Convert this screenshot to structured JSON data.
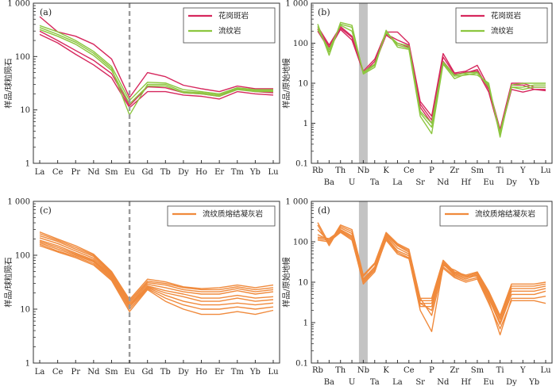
{
  "chart_data": [
    {
      "type": "line",
      "panel_label": "(a)",
      "ylabel": "样品/球粒陨石",
      "yscale": "log",
      "ylim": [
        1,
        1000
      ],
      "yticks": [
        "1",
        "10",
        "100",
        "1 000"
      ],
      "categories": [
        "La",
        "Ce",
        "Pr",
        "Nd",
        "Sm",
        "Eu",
        "Gd",
        "Tb",
        "Dy",
        "Ho",
        "Er",
        "Tm",
        "Yb",
        "Lu"
      ],
      "eu_marker": "Eu",
      "shade": null,
      "legend": {
        "position": "top-right",
        "entries": [
          {
            "label": "花岗斑岩",
            "color": "#d6275d"
          },
          {
            "label": "流纹岩",
            "color": "#8cc63f"
          }
        ]
      },
      "series": [
        {
          "group": "花岗斑岩",
          "color": "#d6275d",
          "values": [
            560,
            290,
            240,
            170,
            90,
            17,
            50,
            42,
            29,
            25,
            22,
            28,
            25,
            25
          ]
        },
        {
          "group": "花岗斑岩",
          "color": "#d6275d",
          "values": [
            300,
            200,
            130,
            85,
            48,
            12,
            27,
            26,
            21,
            20,
            18,
            25,
            22,
            21
          ]
        },
        {
          "group": "花岗斑岩",
          "color": "#d6275d",
          "values": [
            260,
            180,
            110,
            70,
            40,
            11,
            22,
            22,
            19,
            18,
            16,
            22,
            20,
            19
          ]
        },
        {
          "group": "流纹岩",
          "color": "#8cc63f",
          "values": [
            380,
            290,
            200,
            125,
            65,
            15,
            33,
            32,
            24,
            22,
            20,
            26,
            24,
            24
          ]
        },
        {
          "group": "流纹岩",
          "color": "#8cc63f",
          "values": [
            350,
            260,
            185,
            115,
            60,
            8,
            30,
            30,
            22,
            21,
            19,
            25,
            23,
            23
          ]
        },
        {
          "group": "流纹岩",
          "color": "#8cc63f",
          "values": [
            320,
            240,
            170,
            105,
            55,
            13,
            28,
            28,
            21,
            20,
            18,
            24,
            22,
            22
          ]
        }
      ]
    },
    {
      "type": "line",
      "panel_label": "(b)",
      "ylabel": "样品/原始地幔",
      "yscale": "log",
      "ylim": [
        0.1,
        1000
      ],
      "yticks": [
        "0.1",
        "1",
        "10",
        "100",
        "1 000"
      ],
      "categories": [
        "Rb",
        "Ba",
        "Th",
        "U",
        "Nb",
        "Ta",
        "K",
        "La",
        "Ce",
        "Sr",
        "P",
        "Nd",
        "Zr",
        "Hf",
        "Sm",
        "Eu",
        "Ti",
        "Dy",
        "Y",
        "Yb",
        "Lu"
      ],
      "eu_marker": null,
      "shade": "Nb",
      "legend": {
        "position": "top-right",
        "entries": [
          {
            "label": "花岗斑岩",
            "color": "#d6275d"
          },
          {
            "label": "流纹岩",
            "color": "#8cc63f"
          }
        ]
      },
      "series": [
        {
          "group": "花岗斑岩",
          "color": "#d6275d",
          "values": [
            260,
            90,
            260,
            150,
            20,
            40,
            190,
            190,
            100,
            3.5,
            1.5,
            55,
            18,
            20,
            28,
            8,
            0.7,
            10,
            10,
            8,
            8
          ]
        },
        {
          "group": "花岗斑岩",
          "color": "#d6275d",
          "values": [
            230,
            80,
            240,
            140,
            18,
            35,
            170,
            120,
            90,
            3.0,
            1.2,
            45,
            17,
            18,
            22,
            7,
            0.6,
            9,
            9,
            7,
            7
          ]
        },
        {
          "group": "花岗斑岩",
          "color": "#d6275d",
          "values": [
            200,
            70,
            220,
            120,
            19,
            30,
            160,
            100,
            80,
            2.5,
            1.0,
            35,
            16,
            19,
            20,
            6,
            0.55,
            7,
            6,
            7,
            6.5
          ]
        },
        {
          "group": "流纹岩",
          "color": "#8cc63f",
          "values": [
            300,
            50,
            330,
            280,
            17,
            25,
            210,
            80,
            70,
            1.5,
            0.55,
            30,
            13,
            17,
            16,
            10,
            0.45,
            9,
            10,
            10,
            10
          ]
        },
        {
          "group": "流纹岩",
          "color": "#8cc63f",
          "values": [
            260,
            60,
            300,
            250,
            18,
            28,
            200,
            90,
            75,
            1.8,
            0.8,
            32,
            15,
            16,
            18,
            9,
            0.5,
            8,
            8,
            9,
            9
          ]
        },
        {
          "group": "流纹岩",
          "color": "#8cc63f",
          "values": [
            220,
            70,
            280,
            200,
            19,
            30,
            180,
            100,
            85,
            2.0,
            1.0,
            34,
            16,
            18,
            19,
            8,
            0.6,
            8,
            7,
            8,
            8
          ]
        }
      ]
    },
    {
      "type": "line",
      "panel_label": "(c)",
      "ylabel": "样品/球粒陨石",
      "yscale": "log",
      "ylim": [
        1,
        1000
      ],
      "yticks": [
        "1",
        "10",
        "100",
        "1 000"
      ],
      "categories": [
        "La",
        "Ce",
        "Pr",
        "Nd",
        "Sm",
        "Eu",
        "Gd",
        "Tb",
        "Dy",
        "Ho",
        "Er",
        "Tm",
        "Yb",
        "Lu"
      ],
      "eu_marker": "Eu",
      "shade": null,
      "legend": {
        "position": "top-right",
        "entries": [
          {
            "label": "流纹质熔结凝灰岩",
            "color": "#f08a3c"
          }
        ]
      },
      "series": [
        {
          "group": "流纹质熔结凝灰岩",
          "color": "#f08a3c",
          "values": [
            270,
            200,
            150,
            105,
            50,
            15,
            36,
            32,
            26,
            24,
            25,
            28,
            25,
            28
          ]
        },
        {
          "group": "流纹质熔结凝灰岩",
          "color": "#f08a3c",
          "values": [
            250,
            190,
            140,
            100,
            48,
            14,
            33,
            30,
            25,
            23,
            23,
            26,
            23,
            25
          ]
        },
        {
          "group": "流纹质熔结凝灰岩",
          "color": "#f08a3c",
          "values": [
            230,
            180,
            130,
            95,
            46,
            13,
            31,
            28,
            23,
            21,
            21,
            24,
            21,
            23
          ]
        },
        {
          "group": "流纹质熔结凝灰岩",
          "color": "#f08a3c",
          "values": [
            210,
            165,
            120,
            88,
            44,
            12,
            29,
            25,
            21,
            19,
            19,
            22,
            19,
            21
          ]
        },
        {
          "group": "流纹质熔结凝灰岩",
          "color": "#f08a3c",
          "values": [
            190,
            150,
            110,
            82,
            42,
            11,
            27,
            22,
            19,
            16,
            16,
            18,
            16,
            17
          ]
        },
        {
          "group": "流纹质熔结凝灰岩",
          "color": "#f08a3c",
          "values": [
            180,
            140,
            105,
            78,
            40,
            12,
            26,
            20,
            17,
            14,
            14,
            16,
            14,
            15
          ]
        },
        {
          "group": "流纹质熔结凝灰岩",
          "color": "#f08a3c",
          "values": [
            170,
            130,
            100,
            75,
            38,
            11,
            25,
            18,
            14,
            12,
            12,
            13,
            12,
            13
          ]
        },
        {
          "group": "流纹质熔结凝灰岩",
          "color": "#f08a3c",
          "values": [
            160,
            120,
            95,
            70,
            36,
            10,
            24,
            16,
            12,
            10,
            10,
            11,
            10,
            11
          ]
        },
        {
          "group": "流纹质熔结凝灰岩",
          "color": "#f08a3c",
          "values": [
            150,
            115,
            90,
            66,
            34,
            9,
            23,
            14,
            10,
            8,
            8,
            9,
            8,
            9.5
          ]
        }
      ]
    },
    {
      "type": "line",
      "panel_label": "(d)",
      "ylabel": "样品/原始地幔",
      "yscale": "log",
      "ylim": [
        0.1,
        1000
      ],
      "yticks": [
        "0.1",
        "1",
        "10",
        "100",
        "1 000"
      ],
      "categories": [
        "Rb",
        "Ba",
        "Th",
        "U",
        "Nb",
        "Ta",
        "K",
        "La",
        "Ce",
        "Sr",
        "P",
        "Nd",
        "Zr",
        "Hf",
        "Sm",
        "Eu",
        "Ti",
        "Dy",
        "Y",
        "Yb",
        "Lu"
      ],
      "eu_marker": null,
      "shade": "Nb",
      "legend": {
        "position": "top-right",
        "entries": [
          {
            "label": "流纹质熔结凝灰岩",
            "color": "#f08a3c"
          }
        ]
      },
      "series": [
        {
          "group": "流纹质熔结凝灰岩",
          "color": "#f08a3c",
          "values": [
            300,
            90,
            260,
            200,
            15,
            30,
            170,
            90,
            65,
            4,
            4,
            35,
            18,
            15,
            18,
            6,
            1.5,
            9,
            9,
            9,
            10
          ]
        },
        {
          "group": "流纹质熔结凝灰岩",
          "color": "#f08a3c",
          "values": [
            260,
            80,
            240,
            180,
            14,
            28,
            160,
            85,
            60,
            3.5,
            3.5,
            32,
            17,
            14,
            17,
            5.5,
            1.3,
            8,
            8,
            8,
            9
          ]
        },
        {
          "group": "流纹质熔结凝灰岩",
          "color": "#f08a3c",
          "values": [
            200,
            100,
            220,
            160,
            12,
            24,
            150,
            80,
            55,
            3,
            3,
            30,
            16,
            13,
            16,
            5,
            1.2,
            7,
            7,
            7,
            8
          ]
        },
        {
          "group": "流纹质熔结凝灰岩",
          "color": "#f08a3c",
          "values": [
            150,
            110,
            200,
            140,
            11,
            22,
            140,
            70,
            50,
            2.5,
            2.5,
            28,
            15,
            12,
            15,
            4.5,
            1.0,
            6,
            6,
            6,
            7
          ]
        },
        {
          "group": "流纹质熔结凝灰岩",
          "color": "#f08a3c",
          "values": [
            130,
            120,
            190,
            130,
            10,
            20,
            130,
            60,
            45,
            3,
            2,
            26,
            20,
            14,
            14,
            4,
            0.9,
            5,
            5,
            5,
            6
          ]
        },
        {
          "group": "流纹质熔结凝灰岩",
          "color": "#f08a3c",
          "values": [
            120,
            110,
            180,
            120,
            9,
            18,
            120,
            55,
            40,
            2,
            0.6,
            24,
            14,
            11,
            13,
            3.5,
            0.5,
            4,
            4,
            4,
            4.5
          ]
        },
        {
          "group": "流纹质熔结凝灰岩",
          "color": "#f08a3c",
          "values": [
            110,
            100,
            170,
            110,
            10,
            20,
            110,
            50,
            38,
            4,
            1.5,
            22,
            13,
            10,
            12,
            3,
            0.7,
            3.5,
            3.5,
            3.5,
            3
          ]
        }
      ]
    }
  ]
}
